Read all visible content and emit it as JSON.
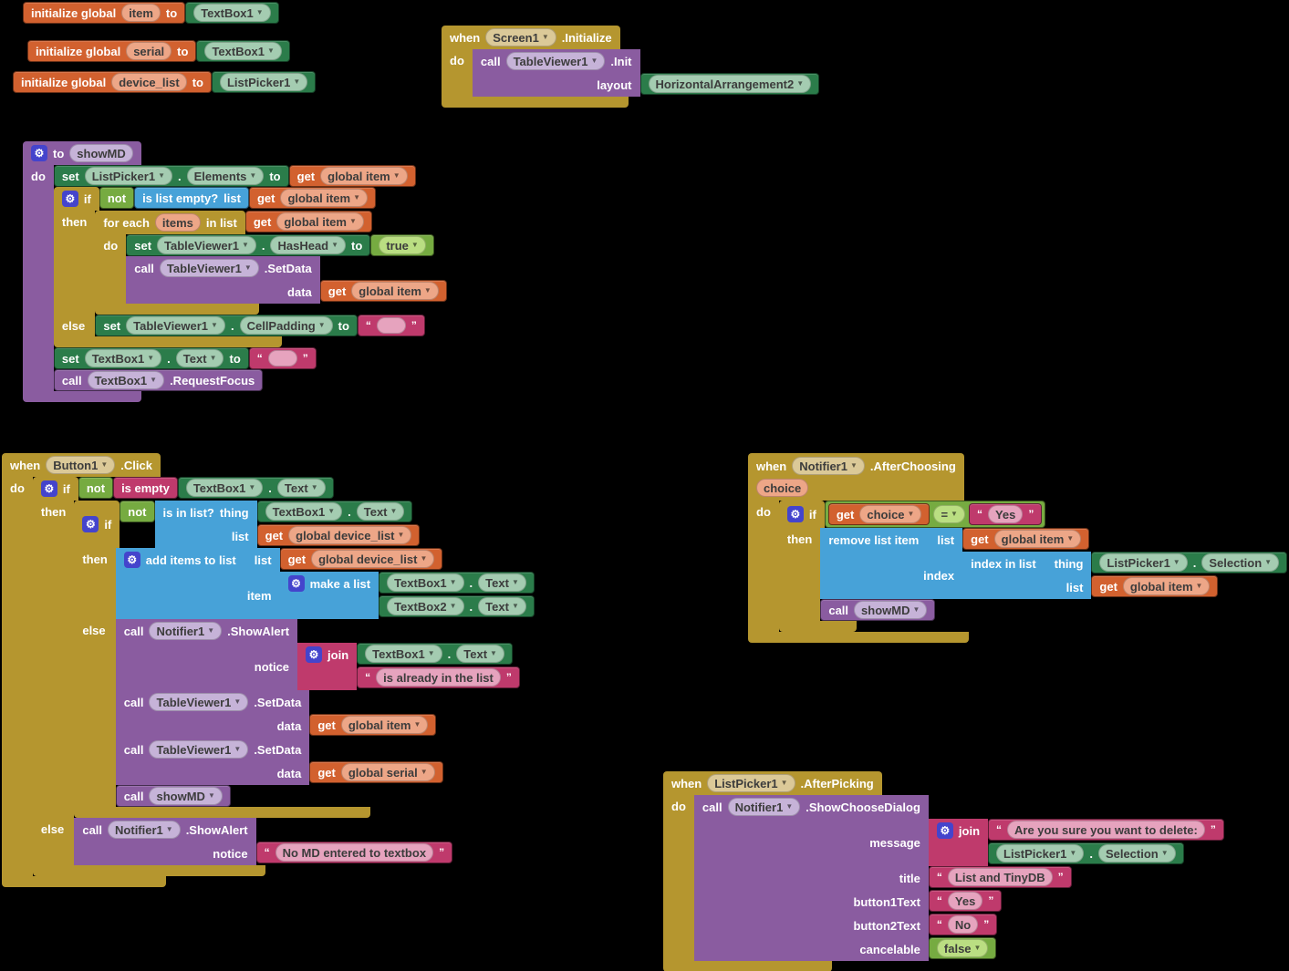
{
  "canvas": {
    "background": "#000000"
  },
  "colors": {
    "event_control": "#b5962f",
    "procedure": "#8a5ca0",
    "component_property": "#2b7c4a",
    "logic": "#76ab41",
    "lists": "#47a2d8",
    "text": "#bf3a6c",
    "variables": "#d2612f",
    "mutator_gear": "#4444cc"
  },
  "icons": {
    "dropdown": "▼",
    "gear": "⚙"
  },
  "labels": {
    "when": "when",
    "do": "do",
    "then": "then",
    "else": "else",
    "if": "if",
    "to": "to",
    "set": "set",
    "call": "call",
    "get": "get",
    "not": "not",
    "list": "list",
    "item": "item",
    "data": "data",
    "index": "index",
    "notice": "notice",
    "message": "message",
    "title": "title",
    "layout": "layout",
    "thing": "thing",
    "dot": ".",
    "quote_open": "“",
    "quote_close": "”",
    "initialize_global": "initialize global",
    "is_empty": "is empty",
    "is_list_empty": "is list empty?",
    "for_each": "for each",
    "in_list": "in list",
    "is_in_list": "is in list?",
    "add_items_to_list": "add items to list",
    "make_a_list": "make a list",
    "join": "join",
    "remove_list_item": "remove list item",
    "index_in_list": "index in list",
    "button1Text": "button1Text",
    "button2Text": "button2Text",
    "cancelable": "cancelable"
  },
  "globals": [
    {
      "keyword": "initialize global",
      "name": "item",
      "value": "TextBox1"
    },
    {
      "keyword": "initialize global",
      "name": "serial",
      "value": "TextBox1"
    },
    {
      "keyword": "initialize global",
      "name": "device_list",
      "value": "ListPicker1"
    }
  ],
  "screen_init": {
    "component": "Screen1",
    "event": ".Initialize",
    "call_component": "TableViewer1",
    "method": ".Init",
    "layout_component": "HorizontalArrangement2"
  },
  "showmd": {
    "name": "showMD",
    "set_elements": {
      "component": "ListPicker1",
      "property": "Elements",
      "value_var": "global item"
    },
    "if_cond_var": "global item",
    "foreach": {
      "var": "items",
      "list_var": "global item"
    },
    "set_hashead": {
      "component": "TableViewer1",
      "property": "HasHead",
      "value": "true"
    },
    "setdata": {
      "component": "TableViewer1",
      "method": ".SetData",
      "data_var": "global item"
    },
    "set_cellpadding": {
      "component": "TableViewer1",
      "property": "CellPadding",
      "value": ""
    },
    "set_text": {
      "component": "TextBox1",
      "property": "Text",
      "value": ""
    },
    "request_focus": {
      "component": "TextBox1",
      "method": ".RequestFocus"
    }
  },
  "button_click": {
    "component": "Button1",
    "event": ".Click",
    "empty_check": {
      "component": "TextBox1",
      "property": "Text"
    },
    "in_list": {
      "component": "TextBox1",
      "property": "Text",
      "list_var": "global device_list"
    },
    "add_items": {
      "list_var": "global device_list",
      "item1": {
        "component": "TextBox1",
        "property": "Text"
      },
      "item2": {
        "component": "TextBox2",
        "property": "Text"
      }
    },
    "alert_duplicate": {
      "component": "Notifier1",
      "method": ".ShowAlert",
      "join_arg1": {
        "component": "TextBox1",
        "property": "Text"
      },
      "join_arg2": " is already in the list "
    },
    "setdata_item": {
      "component": "TableViewer1",
      "method": ".SetData",
      "data_var": "global item"
    },
    "setdata_serial": {
      "component": "TableViewer1",
      "method": ".SetData",
      "data_var": "global serial"
    },
    "call_proc": "showMD",
    "alert_no_md": {
      "component": "Notifier1",
      "method": ".ShowAlert",
      "notice_text": "No MD entered to textbox"
    }
  },
  "after_choosing": {
    "component": "Notifier1",
    "event": ".AfterChoosing",
    "param": "choice",
    "cond": {
      "var": "choice",
      "operator": "=",
      "value": "Yes"
    },
    "remove_item": {
      "list_var": "global item"
    },
    "index_in_list": {
      "component": "ListPicker1",
      "property": "Selection",
      "list_var": "global item"
    },
    "call_proc": "showMD"
  },
  "after_picking": {
    "component": "ListPicker1",
    "event": ".AfterPicking",
    "dialog": {
      "component": "Notifier1",
      "method": ".ShowChooseDialog",
      "message_text": "Are you sure you want to delete:",
      "message_component": "ListPicker1",
      "message_property": "Selection",
      "title_text": "List and TinyDB",
      "button1_text": "Yes",
      "button2_text": "No",
      "cancelable_value": "false"
    }
  }
}
